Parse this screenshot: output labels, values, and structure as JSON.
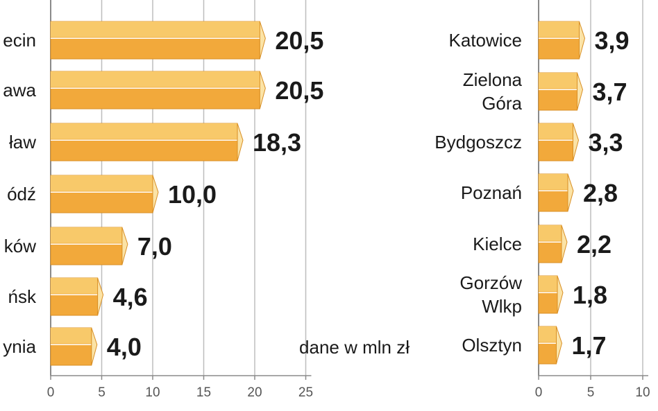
{
  "note": "dane w mln zł",
  "colors": {
    "bar_front": "#f2a93b",
    "bar_top": "#f8c96a",
    "bar_side": "#fbe3a6",
    "bar_edge": "#d98f24",
    "grid": "#bdbdbd",
    "axis": "#8a8a8a"
  },
  "chart_data": [
    {
      "type": "bar",
      "orientation": "horizontal",
      "categories": [
        "ecin",
        "awa",
        "ław",
        "ódź",
        "ków",
        "ńsk",
        "ynia"
      ],
      "values": [
        20.5,
        20.5,
        18.3,
        10.0,
        7.0,
        4.6,
        4.0
      ],
      "value_labels": [
        "20,5",
        "20,5",
        "18,3",
        "10,0",
        "7,0",
        "4,6",
        "4,0"
      ],
      "xlim": [
        0,
        25
      ],
      "ticks": [
        0,
        5,
        10,
        15,
        20,
        25
      ],
      "grid": true
    },
    {
      "type": "bar",
      "orientation": "horizontal",
      "categories": [
        "Katowice",
        "Zielona Góra",
        "Bydgoszcz",
        "Poznań",
        "Kielce",
        "Gorzów Wlkp",
        "Olsztyn"
      ],
      "category_lines": [
        [
          "Katowice"
        ],
        [
          "Zielona",
          "Góra"
        ],
        [
          "Bydgoszcz"
        ],
        [
          "Poznań"
        ],
        [
          "Kielce"
        ],
        [
          "Gorzów",
          "Wlkp"
        ],
        [
          "Olsztyn"
        ]
      ],
      "values": [
        3.9,
        3.7,
        3.3,
        2.8,
        2.2,
        1.8,
        1.7
      ],
      "value_labels": [
        "3,9",
        "3,7",
        "3,3",
        "2,8",
        "2,2",
        "1,8",
        "1,7"
      ],
      "xlim": [
        0,
        10
      ],
      "ticks": [
        0,
        5,
        10
      ],
      "grid": true
    }
  ]
}
